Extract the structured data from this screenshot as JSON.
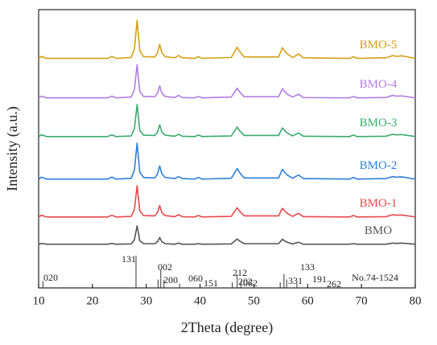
{
  "chart_data": {
    "type": "line",
    "xlabel": "2Theta (degree)",
    "ylabel": "Intensity (a.u.)",
    "xlim": [
      10,
      80
    ],
    "ylim": [
      0,
      100
    ],
    "xticks": [
      10,
      20,
      30,
      40,
      50,
      60,
      70,
      80
    ],
    "x": [
      10,
      10.5,
      11.5,
      22.8,
      23.6,
      24.4,
      27.2,
      27.8,
      28.3,
      28.8,
      29.5,
      31.6,
      32.1,
      32.5,
      32.9,
      33.5,
      35.3,
      36.0,
      36.7,
      39.0,
      39.7,
      40.4,
      45.8,
      46.5,
      46.9,
      47.3,
      48.2,
      54.6,
      55.3,
      55.7,
      56.2,
      57.2,
      58.3,
      59.2,
      67.8,
      68.5,
      69.2,
      74.5,
      75.8,
      76.5,
      77.5,
      80
    ],
    "series": [
      {
        "name": "BMO",
        "color": "#555555",
        "values": [
          15.6,
          16.0,
          15.7,
          15.7,
          16.0,
          15.7,
          15.8,
          17.3,
          22.3,
          16.9,
          15.9,
          15.9,
          16.6,
          18.1,
          16.6,
          15.9,
          15.7,
          16.1,
          15.7,
          15.7,
          15.9,
          15.7,
          15.8,
          16.9,
          17.6,
          16.9,
          15.9,
          15.9,
          17.5,
          16.9,
          16.4,
          15.8,
          16.4,
          15.7,
          15.7,
          15.9,
          15.7,
          15.7,
          16.1,
          16.0,
          16.1,
          15.7
        ]
      },
      {
        "name": "BMO-1",
        "color": "#e8474a",
        "values": [
          25.4,
          26.1,
          25.5,
          25.5,
          26.1,
          25.5,
          25.7,
          28.2,
          36.7,
          27.7,
          26.0,
          25.9,
          27.1,
          29.6,
          27.1,
          26.0,
          25.6,
          26.3,
          25.6,
          25.5,
          26.0,
          25.5,
          25.7,
          27.7,
          28.8,
          27.7,
          25.9,
          25.9,
          28.6,
          27.7,
          26.8,
          25.7,
          26.8,
          25.6,
          25.5,
          26.0,
          25.5,
          25.6,
          26.3,
          26.1,
          26.2,
          25.5
        ]
      },
      {
        "name": "BMO-2",
        "color": "#2f7fd8",
        "values": [
          39,
          39.8,
          39.1,
          39.1,
          39.8,
          39.1,
          39.4,
          42.3,
          52,
          41.6,
          39.7,
          39.5,
          41,
          43.8,
          41,
          39.7,
          39.3,
          40,
          39.3,
          39.1,
          39.7,
          39.1,
          39.4,
          41.6,
          42.9,
          41.6,
          39.5,
          39.5,
          42.6,
          41.6,
          40.6,
          39.4,
          40.6,
          39.3,
          39.1,
          39.7,
          39.1,
          39.3,
          40,
          39.8,
          39.9,
          39.1
        ]
      },
      {
        "name": "BMO-3",
        "color": "#3aaa6e",
        "values": [
          54.3,
          55.0,
          54.4,
          54.4,
          55.0,
          54.4,
          54.6,
          57.2,
          65.9,
          56.6,
          54.9,
          54.8,
          56.0,
          58.6,
          56.0,
          54.9,
          54.5,
          55.2,
          54.5,
          54.4,
          54.9,
          54.4,
          54.6,
          56.6,
          57.8,
          56.6,
          54.8,
          54.8,
          57.5,
          56.6,
          55.7,
          54.6,
          55.7,
          54.5,
          54.4,
          54.9,
          54.4,
          54.5,
          55.2,
          55.0,
          55.1,
          54.4
        ]
      },
      {
        "name": "BMO-4",
        "color": "#b07ee0",
        "values": [
          68.2,
          68.9,
          68.3,
          68.3,
          68.9,
          68.3,
          68.6,
          71.2,
          80.2,
          70.6,
          68.8,
          68.7,
          70,
          72.6,
          70,
          68.8,
          68.4,
          69.2,
          68.4,
          68.3,
          68.8,
          68.3,
          68.6,
          70.6,
          71.8,
          70.6,
          68.7,
          68.7,
          71.6,
          70.6,
          69.6,
          68.6,
          69.6,
          68.4,
          68.3,
          68.8,
          68.3,
          68.4,
          69.2,
          68.9,
          69,
          68.3
        ]
      },
      {
        "name": "BMO-5",
        "color": "#d4a017",
        "values": [
          82.4,
          83.2,
          82.5,
          82.5,
          83.2,
          82.5,
          82.8,
          85.9,
          96.2,
          85.2,
          83.1,
          83,
          84.5,
          87.5,
          84.5,
          83.1,
          82.7,
          83.5,
          82.7,
          82.5,
          83.1,
          82.5,
          82.8,
          85.2,
          86.5,
          85.2,
          83,
          83,
          86.3,
          85.2,
          84.1,
          82.8,
          84.1,
          82.7,
          82.5,
          83.1,
          82.5,
          82.7,
          83.5,
          83.2,
          83.4,
          82.5
        ]
      }
    ],
    "reference": {
      "name": "No.74-1524",
      "color": "#333333",
      "peaks": [
        {
          "label": "020",
          "x": 10.8,
          "height": 2.5
        },
        {
          "label": "131",
          "x": 28.1,
          "height": 11.6
        },
        {
          "label": "200",
          "x": 32.2,
          "height": 3
        },
        {
          "label": "002",
          "x": 32.7,
          "height": 6.5
        },
        {
          "label": "060",
          "x": 33.3,
          "height": 3
        },
        {
          "label": "151",
          "x": 36.2,
          "height": 1.5
        },
        {
          "label": "202",
          "x": 46.0,
          "height": 2
        },
        {
          "label": "212",
          "x": 46.9,
          "height": 5
        },
        {
          "label": "062",
          "x": 47.6,
          "height": 2.5
        },
        {
          "label": "331",
          "x": 54.9,
          "height": 2
        },
        {
          "label": "133",
          "x": 55.6,
          "height": 5
        },
        {
          "label": "191",
          "x": 56.1,
          "height": 3
        },
        {
          "label": "262",
          "x": 58.0,
          "height": 1.5
        }
      ]
    }
  }
}
